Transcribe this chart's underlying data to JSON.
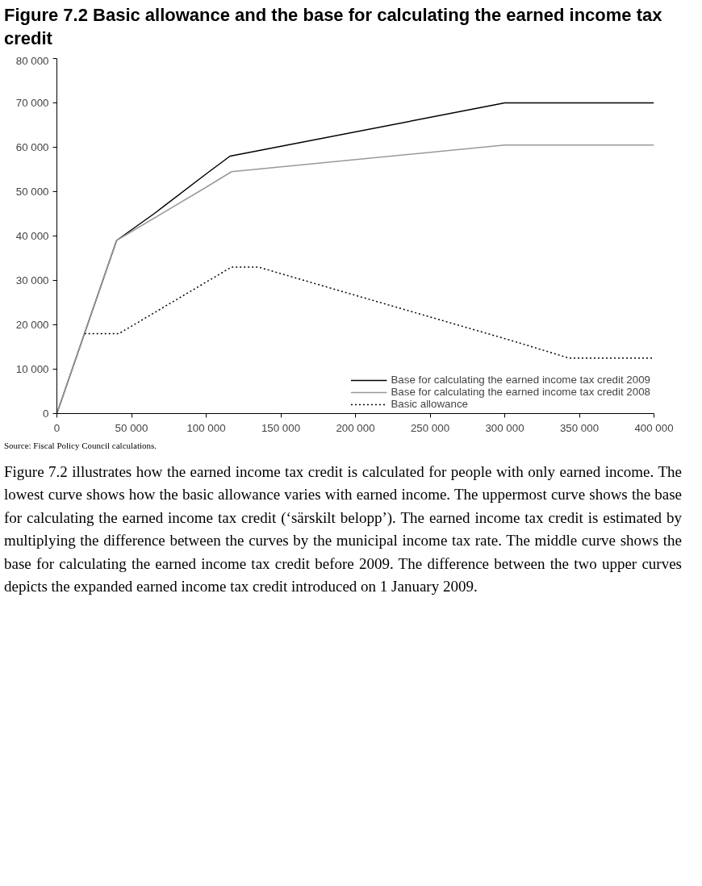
{
  "chart_data": {
    "type": "line",
    "title": "Figure 7.2 Basic allowance and the base for calculating the earned income tax credit",
    "xlim": [
      0,
      400000
    ],
    "ylim": [
      0,
      80000
    ],
    "xticks": [
      0,
      {
        "value": 50000,
        "label": "50 000"
      },
      {
        "value": 100000,
        "label": "100 000"
      },
      {
        "value": 150000,
        "label": "150 000"
      },
      {
        "value": 200000,
        "label": "200 000"
      },
      {
        "value": 250000,
        "label": "250 000"
      },
      {
        "value": 300000,
        "label": "300 000"
      },
      {
        "value": 350000,
        "label": "350 000"
      },
      {
        "value": 400000,
        "label": "400 000"
      }
    ],
    "yticks": [
      0,
      {
        "value": 10000,
        "label": "10 000"
      },
      {
        "value": 20000,
        "label": "20 000"
      },
      {
        "value": 30000,
        "label": "30 000"
      },
      {
        "value": 40000,
        "label": "40 000"
      },
      {
        "value": 50000,
        "label": "50 000"
      },
      {
        "value": 60000,
        "label": "60 000"
      },
      {
        "value": 70000,
        "label": "70 000"
      },
      {
        "value": 80000,
        "label": "80 000"
      }
    ],
    "grid": false,
    "legend": "bottom",
    "series": [
      {
        "name": "Base for calculating the earned income tax credit 2009",
        "color": "#000000",
        "line_style": "solid",
        "x": [
          0,
          40000,
          65000,
          100000,
          116000,
          300000,
          400000
        ],
        "values": [
          0,
          39000,
          45000,
          54000,
          58000,
          70000,
          70000
        ]
      },
      {
        "name": "Base for calculating the earned income tax credit 2008",
        "color": "#999999",
        "line_style": "solid",
        "x": [
          0,
          40000,
          100000,
          117000,
          300000,
          400000
        ],
        "values": [
          0,
          39000,
          51000,
          54500,
          60500,
          60500
        ]
      },
      {
        "name": "Basic allowance",
        "color": "#000000",
        "line_style": "dotted",
        "x": [
          18500,
          41500,
          117000,
          135000,
          186000,
          304000,
          343000,
          400000
        ],
        "values": [
          18000,
          18000,
          33000,
          33000,
          28000,
          16500,
          12500,
          12500
        ]
      }
    ],
    "annotations": [
      "Source: Fiscal Policy Council calculations.",
      "Figure 7.2 illustrates how the earned income tax credit is calculated for people with only earned income. The lowest curve shows how the basic allowance varies with earned income. The uppermost curve shows the base for calculating the earned income tax credit (‘särskilt belopp’). The earned income tax credit is estimated by multiplying the difference between the curves by the municipal income tax rate. The middle curve shows the base for calculating the earned income tax credit before 2009. The difference between the two upper curves depicts the expanded earned income tax credit introduced on 1 January 2009."
    ]
  }
}
